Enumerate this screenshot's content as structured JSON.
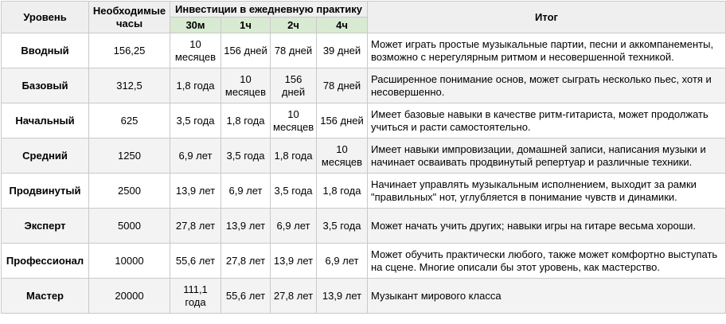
{
  "headers": {
    "level": "Уровень",
    "hours": "Необходимые часы",
    "investment": "Инвестиции в ежедневную практику",
    "result": "Итог",
    "durations": [
      "30м",
      "1ч",
      "2ч",
      "4ч"
    ]
  },
  "rows": [
    {
      "level": "Вводный",
      "hours": "156,25",
      "t30m": "10 месяцев",
      "t1h": "156 дней",
      "t2h": "78 дней",
      "t4h": "39 дней",
      "result": "Может играть простые музыкальные партии, песни и аккомпанементы, возможно с нерегулярным ритмом и несовершенной техникой."
    },
    {
      "level": "Базовый",
      "hours": "312,5",
      "t30m": "1,8 года",
      "t1h": "10 месяцев",
      "t2h": "156 дней",
      "t4h": "78 дней",
      "result": "Расширенное понимание основ, может сыграть несколько пьес, хотя и несовершенно."
    },
    {
      "level": "Начальный",
      "hours": "625",
      "t30m": "3,5 года",
      "t1h": "1,8 года",
      "t2h": "10 месяцев",
      "t4h": "156 дней",
      "result": "Имеет базовые навыки в качестве ритм-гитариста, может продолжать учиться и расти самостоятельно."
    },
    {
      "level": "Средний",
      "hours": "1250",
      "t30m": "6,9 лет",
      "t1h": "3,5 года",
      "t2h": "1,8 года",
      "t4h": "10 месяцев",
      "result": "Имеет навыки импровизации, домашней записи, написания музыки и начинает осваивать продвинутый репертуар и различные техники."
    },
    {
      "level": "Продвинутый",
      "hours": "2500",
      "t30m": "13,9 лет",
      "t1h": "6,9 лет",
      "t2h": "3,5 года",
      "t4h": "1,8 года",
      "result": "Начинает управлять музыкальным исполнением, выходит за рамки \"правильных\" нот, углубляется в понимание чувств и динамики."
    },
    {
      "level": "Эксперт",
      "hours": "5000",
      "t30m": "27,8 лет",
      "t1h": "13,9 лет",
      "t2h": "6,9 лет",
      "t4h": "3,5 года",
      "result": "Может начать учить других; навыки игры на гитаре весьма хороши."
    },
    {
      "level": "Профессионал",
      "hours": "10000",
      "t30m": "55,6 лет",
      "t1h": "27,8 лет",
      "t2h": "13,9 лет",
      "t4h": "6,9 лет",
      "result": "Может обучить практически любого, также может комфортно выступать на сцене. Многие описали бы этот уровень, как мастерство."
    },
    {
      "level": "Мастер",
      "hours": "20000",
      "t30m": "111,1 года",
      "t1h": "55,6 лет",
      "t2h": "27,8 лет",
      "t4h": "13,9 лет",
      "result": "Музыкант мирового класса"
    }
  ]
}
